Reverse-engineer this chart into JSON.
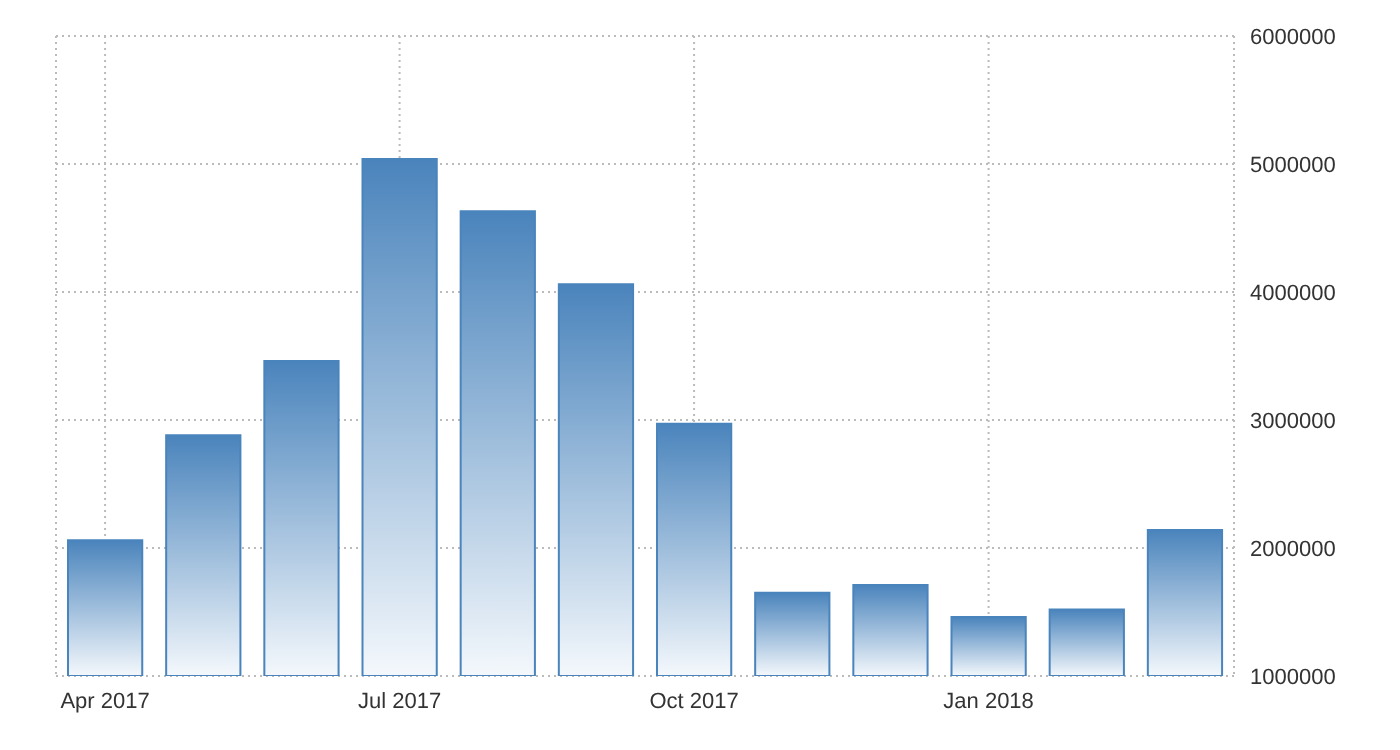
{
  "chart_data": {
    "type": "bar",
    "categories": [
      "Apr 2017",
      null,
      null,
      "Jul 2017",
      null,
      null,
      "Oct 2017",
      null,
      null,
      "Jan 2018",
      null,
      null
    ],
    "values": [
      2060000,
      2880000,
      3460000,
      5040000,
      4630000,
      4060000,
      2970000,
      1650000,
      1710000,
      1460000,
      1520000,
      2140000
    ],
    "color": "#4a84bc",
    "ylim": [
      1000000,
      6000000
    ],
    "yticks": [
      1000000,
      2000000,
      3000000,
      4000000,
      5000000,
      6000000
    ],
    "grid": true,
    "legend": false
  }
}
